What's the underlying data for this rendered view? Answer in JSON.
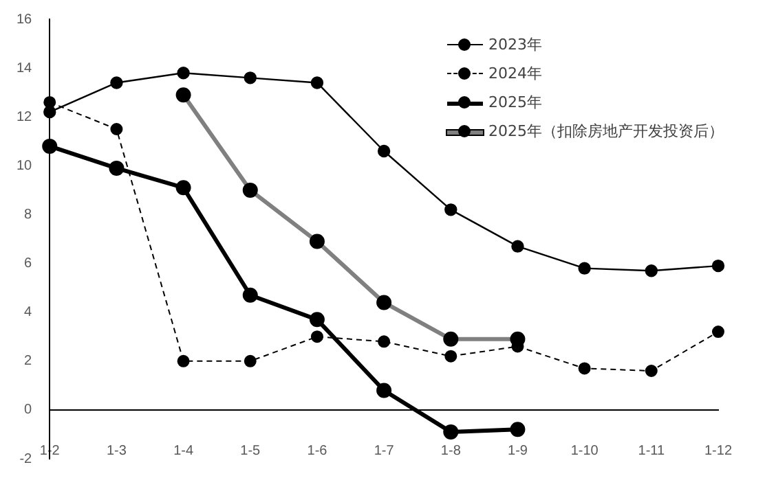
{
  "chart_data": {
    "type": "line",
    "categories": [
      "1-2",
      "1-3",
      "1-4",
      "1-5",
      "1-6",
      "1-7",
      "1-8",
      "1-9",
      "1-10",
      "1-11",
      "1-12"
    ],
    "series": [
      {
        "name": "2023年",
        "color": "#000000",
        "line_style": "solid",
        "values": [
          12.2,
          13.4,
          13.8,
          13.6,
          13.4,
          10.6,
          8.2,
          6.7,
          5.8,
          5.7,
          5.9
        ]
      },
      {
        "name": "2024年",
        "color": "#000000",
        "line_style": "dashed",
        "values": [
          12.6,
          11.5,
          2.0,
          2.0,
          3.0,
          2.8,
          2.2,
          2.6,
          1.7,
          1.6,
          3.2
        ]
      },
      {
        "name": "2025年",
        "color": "#000000",
        "line_style": "solid",
        "values": [
          10.8,
          9.9,
          9.1,
          4.7,
          3.7,
          0.8,
          -0.9,
          -0.8,
          null,
          null,
          null
        ]
      },
      {
        "name": "2025年（扣除房地产开发投资后）",
        "color": "#808080",
        "line_style": "solid",
        "values": [
          null,
          null,
          12.9,
          9.0,
          6.9,
          4.4,
          2.9,
          2.9,
          null,
          null,
          null
        ]
      }
    ],
    "ylim": [
      -2,
      16
    ],
    "yticks": [
      -2,
      0,
      2,
      4,
      6,
      8,
      10,
      12,
      14,
      16
    ],
    "grid": false,
    "legend": "top right",
    "marker": "circle"
  }
}
